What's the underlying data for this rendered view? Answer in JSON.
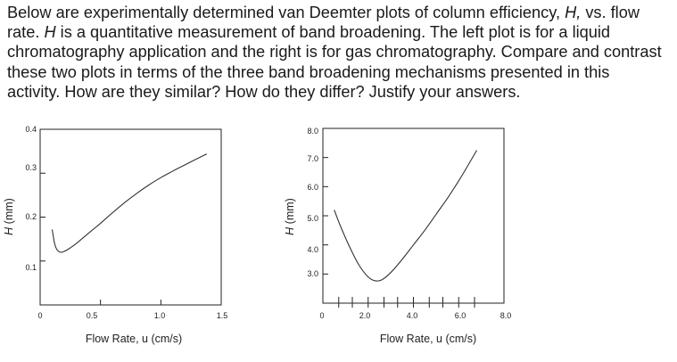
{
  "question_lines": [
    [
      "Below are experimentally determined van Deemter plots of column efficiency, ",
      {
        "i": "H,"
      },
      " vs. flow"
    ],
    [
      "rate. ",
      {
        "i": "H"
      },
      " is a  quantitative measurement of band broadening. The left plot is for a liquid"
    ],
    [
      "chromatography application and the  right is for gas chromatography. Compare and contrast"
    ],
    [
      "these two plots in terms of the three band broadening mechanisms presented in this"
    ],
    [
      "activity. How are they similar? How do they differ? Justify your answers."
    ]
  ],
  "chart_data": [
    {
      "type": "line",
      "title": "",
      "xlabel": "Flow Rate, u (cm/s)",
      "ylabel": "H (mm)",
      "xlim": [
        0,
        1.5
      ],
      "ylim": [
        0,
        0.4
      ],
      "x_ticks": [
        0.5,
        1.0
      ],
      "x_tick_labels": [
        "0",
        "0.5",
        "1.0",
        "1.5"
      ],
      "y_ticks": [
        0.1,
        0.2,
        0.3
      ],
      "y_tick_labels": [
        "0.4",
        "0.3",
        "0.2",
        "0.1"
      ],
      "grid": false,
      "series": [
        {
          "x": [
            0.1,
            0.12,
            0.14,
            0.17,
            0.2,
            0.25,
            0.3,
            0.4,
            0.5,
            0.6,
            0.7,
            0.8,
            0.9,
            1.0,
            1.1,
            1.2,
            1.3,
            1.38
          ],
          "y": [
            0.172,
            0.14,
            0.126,
            0.12,
            0.122,
            0.13,
            0.14,
            0.163,
            0.186,
            0.21,
            0.233,
            0.254,
            0.273,
            0.29,
            0.305,
            0.319,
            0.333,
            0.344
          ]
        }
      ]
    },
    {
      "type": "line",
      "title": "",
      "xlabel": "Flow Rate, u (cm/s)",
      "ylabel": "H (mm)",
      "xlim": [
        0,
        8.0
      ],
      "ylim": [
        2.0,
        8.0
      ],
      "x_ticks": [
        0.7,
        1.3,
        2.0,
        2.7,
        3.3,
        4.0,
        4.7,
        5.3,
        6.0,
        6.7
      ],
      "x_tick_labels": [
        "0",
        "2.0",
        "4.0",
        "6.0",
        "8.0"
      ],
      "y_ticks": [
        3.0,
        4.0,
        5.0,
        6.0,
        7.0
      ],
      "y_tick_labels": [
        "8.0",
        "7.0",
        "6.0",
        "5.0",
        "4.0",
        "3.0"
      ],
      "grid": false,
      "series": [
        {
          "x": [
            0.5,
            0.8,
            1.2,
            1.6,
            2.0,
            2.3,
            2.6,
            3.0,
            3.5,
            4.0,
            4.5,
            5.0,
            5.5,
            6.0,
            6.5,
            6.8
          ],
          "y": [
            5.2,
            4.6,
            3.9,
            3.3,
            2.9,
            2.77,
            2.8,
            3.05,
            3.5,
            4.0,
            4.5,
            5.05,
            5.6,
            6.2,
            6.85,
            7.25
          ]
        }
      ]
    }
  ]
}
